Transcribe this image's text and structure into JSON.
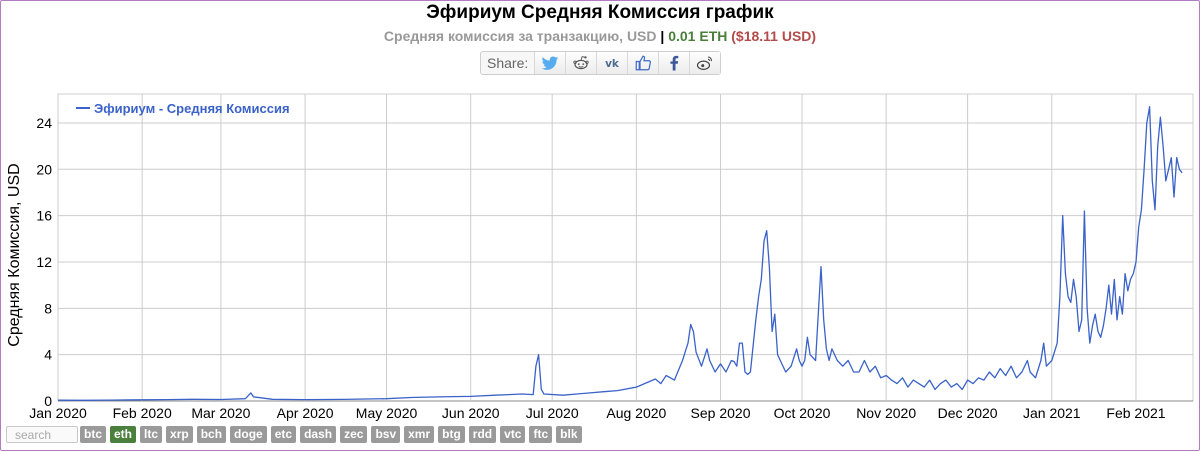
{
  "header": {
    "title": "Эфириум Средняя Комиссия график",
    "subtitle_main": "Средняя комиссия за транзакцию, USD",
    "subtitle_sep": "|",
    "subtitle_eth": "0.01 ETH",
    "subtitle_usd": "($18.11 USD)"
  },
  "share": {
    "label": "Share:",
    "buttons": [
      "twitter-icon",
      "reddit-icon",
      "vk-icon",
      "like-icon",
      "facebook-icon",
      "weibo-icon"
    ]
  },
  "chart_data": {
    "type": "line",
    "ylabel": "Средняя Комиссия, USD",
    "ylim": [
      0,
      26.5
    ],
    "yticks": [
      0,
      4,
      8,
      12,
      16,
      20,
      24
    ],
    "xlim": [
      "2020-01-01",
      "2021-02-22"
    ],
    "xticks": [
      {
        "date": "2020-01-01",
        "label": "Jan 2020"
      },
      {
        "date": "2020-02-01",
        "label": "Feb 2020"
      },
      {
        "date": "2020-03-01",
        "label": "Mar 2020"
      },
      {
        "date": "2020-04-01",
        "label": "Apr 2020"
      },
      {
        "date": "2020-05-01",
        "label": "May 2020"
      },
      {
        "date": "2020-06-01",
        "label": "Jun 2020"
      },
      {
        "date": "2020-07-01",
        "label": "Jul 2020"
      },
      {
        "date": "2020-08-01",
        "label": "Aug 2020"
      },
      {
        "date": "2020-09-01",
        "label": "Sep 2020"
      },
      {
        "date": "2020-10-01",
        "label": "Oct 2020"
      },
      {
        "date": "2020-11-01",
        "label": "Nov 2020"
      },
      {
        "date": "2020-12-01",
        "label": "Dec 2020"
      },
      {
        "date": "2021-01-01",
        "label": "Jan 2021"
      },
      {
        "date": "2021-02-01",
        "label": "Feb 2021"
      }
    ],
    "grid": true,
    "legend_position": "top-left",
    "series": [
      {
        "name": "Эфириум - Средняя Комиссия",
        "color": "#3a62c8",
        "points": [
          [
            "2020-01-01",
            0.07
          ],
          [
            "2020-01-10",
            0.06
          ],
          [
            "2020-01-20",
            0.08
          ],
          [
            "2020-02-01",
            0.1
          ],
          [
            "2020-02-10",
            0.12
          ],
          [
            "2020-02-20",
            0.15
          ],
          [
            "2020-03-01",
            0.13
          ],
          [
            "2020-03-10",
            0.2
          ],
          [
            "2020-03-12",
            0.7
          ],
          [
            "2020-03-13",
            0.35
          ],
          [
            "2020-03-20",
            0.15
          ],
          [
            "2020-04-01",
            0.12
          ],
          [
            "2020-04-15",
            0.14
          ],
          [
            "2020-05-01",
            0.2
          ],
          [
            "2020-05-10",
            0.3
          ],
          [
            "2020-05-20",
            0.35
          ],
          [
            "2020-06-01",
            0.4
          ],
          [
            "2020-06-10",
            0.5
          ],
          [
            "2020-06-20",
            0.6
          ],
          [
            "2020-06-24",
            0.55
          ],
          [
            "2020-06-25",
            3.0
          ],
          [
            "2020-06-26",
            4.0
          ],
          [
            "2020-06-27",
            1.0
          ],
          [
            "2020-06-28",
            0.6
          ],
          [
            "2020-07-05",
            0.5
          ],
          [
            "2020-07-10",
            0.6
          ],
          [
            "2020-07-15",
            0.7
          ],
          [
            "2020-07-20",
            0.8
          ],
          [
            "2020-07-25",
            0.9
          ],
          [
            "2020-08-01",
            1.2
          ],
          [
            "2020-08-05",
            1.6
          ],
          [
            "2020-08-08",
            1.9
          ],
          [
            "2020-08-10",
            1.5
          ],
          [
            "2020-08-12",
            2.2
          ],
          [
            "2020-08-15",
            1.8
          ],
          [
            "2020-08-18",
            3.5
          ],
          [
            "2020-08-20",
            5.0
          ],
          [
            "2020-08-21",
            6.6
          ],
          [
            "2020-08-22",
            6.0
          ],
          [
            "2020-08-23",
            4.2
          ],
          [
            "2020-08-25",
            3.0
          ],
          [
            "2020-08-27",
            4.5
          ],
          [
            "2020-08-28",
            3.5
          ],
          [
            "2020-08-30",
            2.5
          ],
          [
            "2020-09-01",
            3.2
          ],
          [
            "2020-09-03",
            2.5
          ],
          [
            "2020-09-05",
            3.5
          ],
          [
            "2020-09-06",
            3.4
          ],
          [
            "2020-09-07",
            3.0
          ],
          [
            "2020-09-08",
            5.0
          ],
          [
            "2020-09-09",
            5.0
          ],
          [
            "2020-09-10",
            2.5
          ],
          [
            "2020-09-11",
            2.3
          ],
          [
            "2020-09-12",
            2.5
          ],
          [
            "2020-09-14",
            7.0
          ],
          [
            "2020-09-15",
            9.0
          ],
          [
            "2020-09-16",
            10.5
          ],
          [
            "2020-09-17",
            13.8
          ],
          [
            "2020-09-18",
            14.7
          ],
          [
            "2020-09-19",
            11.5
          ],
          [
            "2020-09-20",
            6.0
          ],
          [
            "2020-09-21",
            7.5
          ],
          [
            "2020-09-22",
            4.0
          ],
          [
            "2020-09-23",
            3.5
          ],
          [
            "2020-09-25",
            2.5
          ],
          [
            "2020-09-27",
            3.0
          ],
          [
            "2020-09-29",
            4.5
          ],
          [
            "2020-09-30",
            3.5
          ],
          [
            "2020-10-01",
            3.0
          ],
          [
            "2020-10-02",
            3.5
          ],
          [
            "2020-10-03",
            5.5
          ],
          [
            "2020-10-04",
            4.0
          ],
          [
            "2020-10-06",
            3.5
          ],
          [
            "2020-10-08",
            11.6
          ],
          [
            "2020-10-09",
            7.0
          ],
          [
            "2020-10-10",
            4.5
          ],
          [
            "2020-10-11",
            3.5
          ],
          [
            "2020-10-12",
            4.5
          ],
          [
            "2020-10-14",
            3.5
          ],
          [
            "2020-10-16",
            3.0
          ],
          [
            "2020-10-18",
            3.5
          ],
          [
            "2020-10-20",
            2.5
          ],
          [
            "2020-10-22",
            2.5
          ],
          [
            "2020-10-24",
            3.5
          ],
          [
            "2020-10-26",
            2.5
          ],
          [
            "2020-10-28",
            3.0
          ],
          [
            "2020-10-30",
            2.0
          ],
          [
            "2020-11-01",
            2.2
          ],
          [
            "2020-11-03",
            1.8
          ],
          [
            "2020-11-05",
            1.5
          ],
          [
            "2020-11-07",
            2.0
          ],
          [
            "2020-11-09",
            1.2
          ],
          [
            "2020-11-11",
            1.8
          ],
          [
            "2020-11-13",
            1.5
          ],
          [
            "2020-11-15",
            1.2
          ],
          [
            "2020-11-17",
            1.8
          ],
          [
            "2020-11-19",
            1.0
          ],
          [
            "2020-11-21",
            1.5
          ],
          [
            "2020-11-23",
            1.8
          ],
          [
            "2020-11-25",
            1.2
          ],
          [
            "2020-11-27",
            1.5
          ],
          [
            "2020-11-29",
            1.0
          ],
          [
            "2020-12-01",
            1.8
          ],
          [
            "2020-12-03",
            1.5
          ],
          [
            "2020-12-05",
            2.0
          ],
          [
            "2020-12-07",
            1.8
          ],
          [
            "2020-12-09",
            2.5
          ],
          [
            "2020-12-11",
            2.0
          ],
          [
            "2020-12-13",
            2.8
          ],
          [
            "2020-12-15",
            2.2
          ],
          [
            "2020-12-17",
            3.0
          ],
          [
            "2020-12-19",
            2.0
          ],
          [
            "2020-12-21",
            2.5
          ],
          [
            "2020-12-23",
            3.5
          ],
          [
            "2020-12-24",
            2.5
          ],
          [
            "2020-12-26",
            2.0
          ],
          [
            "2020-12-28",
            3.5
          ],
          [
            "2020-12-29",
            5.0
          ],
          [
            "2020-12-30",
            3.0
          ],
          [
            "2021-01-01",
            3.5
          ],
          [
            "2021-01-03",
            5.0
          ],
          [
            "2021-01-04",
            9.0
          ],
          [
            "2021-01-05",
            16.0
          ],
          [
            "2021-01-06",
            11.0
          ],
          [
            "2021-01-07",
            9.0
          ],
          [
            "2021-01-08",
            8.5
          ],
          [
            "2021-01-09",
            10.5
          ],
          [
            "2021-01-10",
            9.0
          ],
          [
            "2021-01-11",
            6.0
          ],
          [
            "2021-01-12",
            7.0
          ],
          [
            "2021-01-13",
            16.4
          ],
          [
            "2021-01-14",
            8.0
          ],
          [
            "2021-01-15",
            5.0
          ],
          [
            "2021-01-16",
            6.5
          ],
          [
            "2021-01-17",
            7.5
          ],
          [
            "2021-01-18",
            6.0
          ],
          [
            "2021-01-19",
            5.5
          ],
          [
            "2021-01-20",
            6.5
          ],
          [
            "2021-01-21",
            8.0
          ],
          [
            "2021-01-22",
            10.0
          ],
          [
            "2021-01-23",
            7.5
          ],
          [
            "2021-01-24",
            10.5
          ],
          [
            "2021-01-25",
            7.0
          ],
          [
            "2021-01-26",
            9.0
          ],
          [
            "2021-01-27",
            7.5
          ],
          [
            "2021-01-28",
            11.0
          ],
          [
            "2021-01-29",
            9.5
          ],
          [
            "2021-01-30",
            10.5
          ],
          [
            "2021-01-31",
            11.0
          ],
          [
            "2021-02-01",
            12.0
          ],
          [
            "2021-02-02",
            15.0
          ],
          [
            "2021-02-03",
            16.5
          ],
          [
            "2021-02-04",
            20.0
          ],
          [
            "2021-02-05",
            24.0
          ],
          [
            "2021-02-06",
            25.4
          ],
          [
            "2021-02-07",
            19.0
          ],
          [
            "2021-02-08",
            16.5
          ],
          [
            "2021-02-09",
            22.0
          ],
          [
            "2021-02-10",
            24.5
          ],
          [
            "2021-02-11",
            22.0
          ],
          [
            "2021-02-12",
            19.0
          ],
          [
            "2021-02-13",
            20.0
          ],
          [
            "2021-02-14",
            21.0
          ],
          [
            "2021-02-15",
            17.6
          ],
          [
            "2021-02-16",
            21.0
          ],
          [
            "2021-02-17",
            20.0
          ],
          [
            "2021-02-18",
            19.7
          ]
        ]
      }
    ]
  },
  "footer": {
    "search_placeholder": "search",
    "coins": [
      {
        "label": "btc",
        "active": false
      },
      {
        "label": "eth",
        "active": true
      },
      {
        "label": "ltc",
        "active": false
      },
      {
        "label": "xrp",
        "active": false
      },
      {
        "label": "bch",
        "active": false
      },
      {
        "label": "doge",
        "active": false
      },
      {
        "label": "etc",
        "active": false
      },
      {
        "label": "dash",
        "active": false
      },
      {
        "label": "zec",
        "active": false
      },
      {
        "label": "bsv",
        "active": false
      },
      {
        "label": "xmr",
        "active": false
      },
      {
        "label": "btg",
        "active": false
      },
      {
        "label": "rdd",
        "active": false
      },
      {
        "label": "vtc",
        "active": false
      },
      {
        "label": "ftc",
        "active": false
      },
      {
        "label": "blk",
        "active": false
      }
    ]
  }
}
